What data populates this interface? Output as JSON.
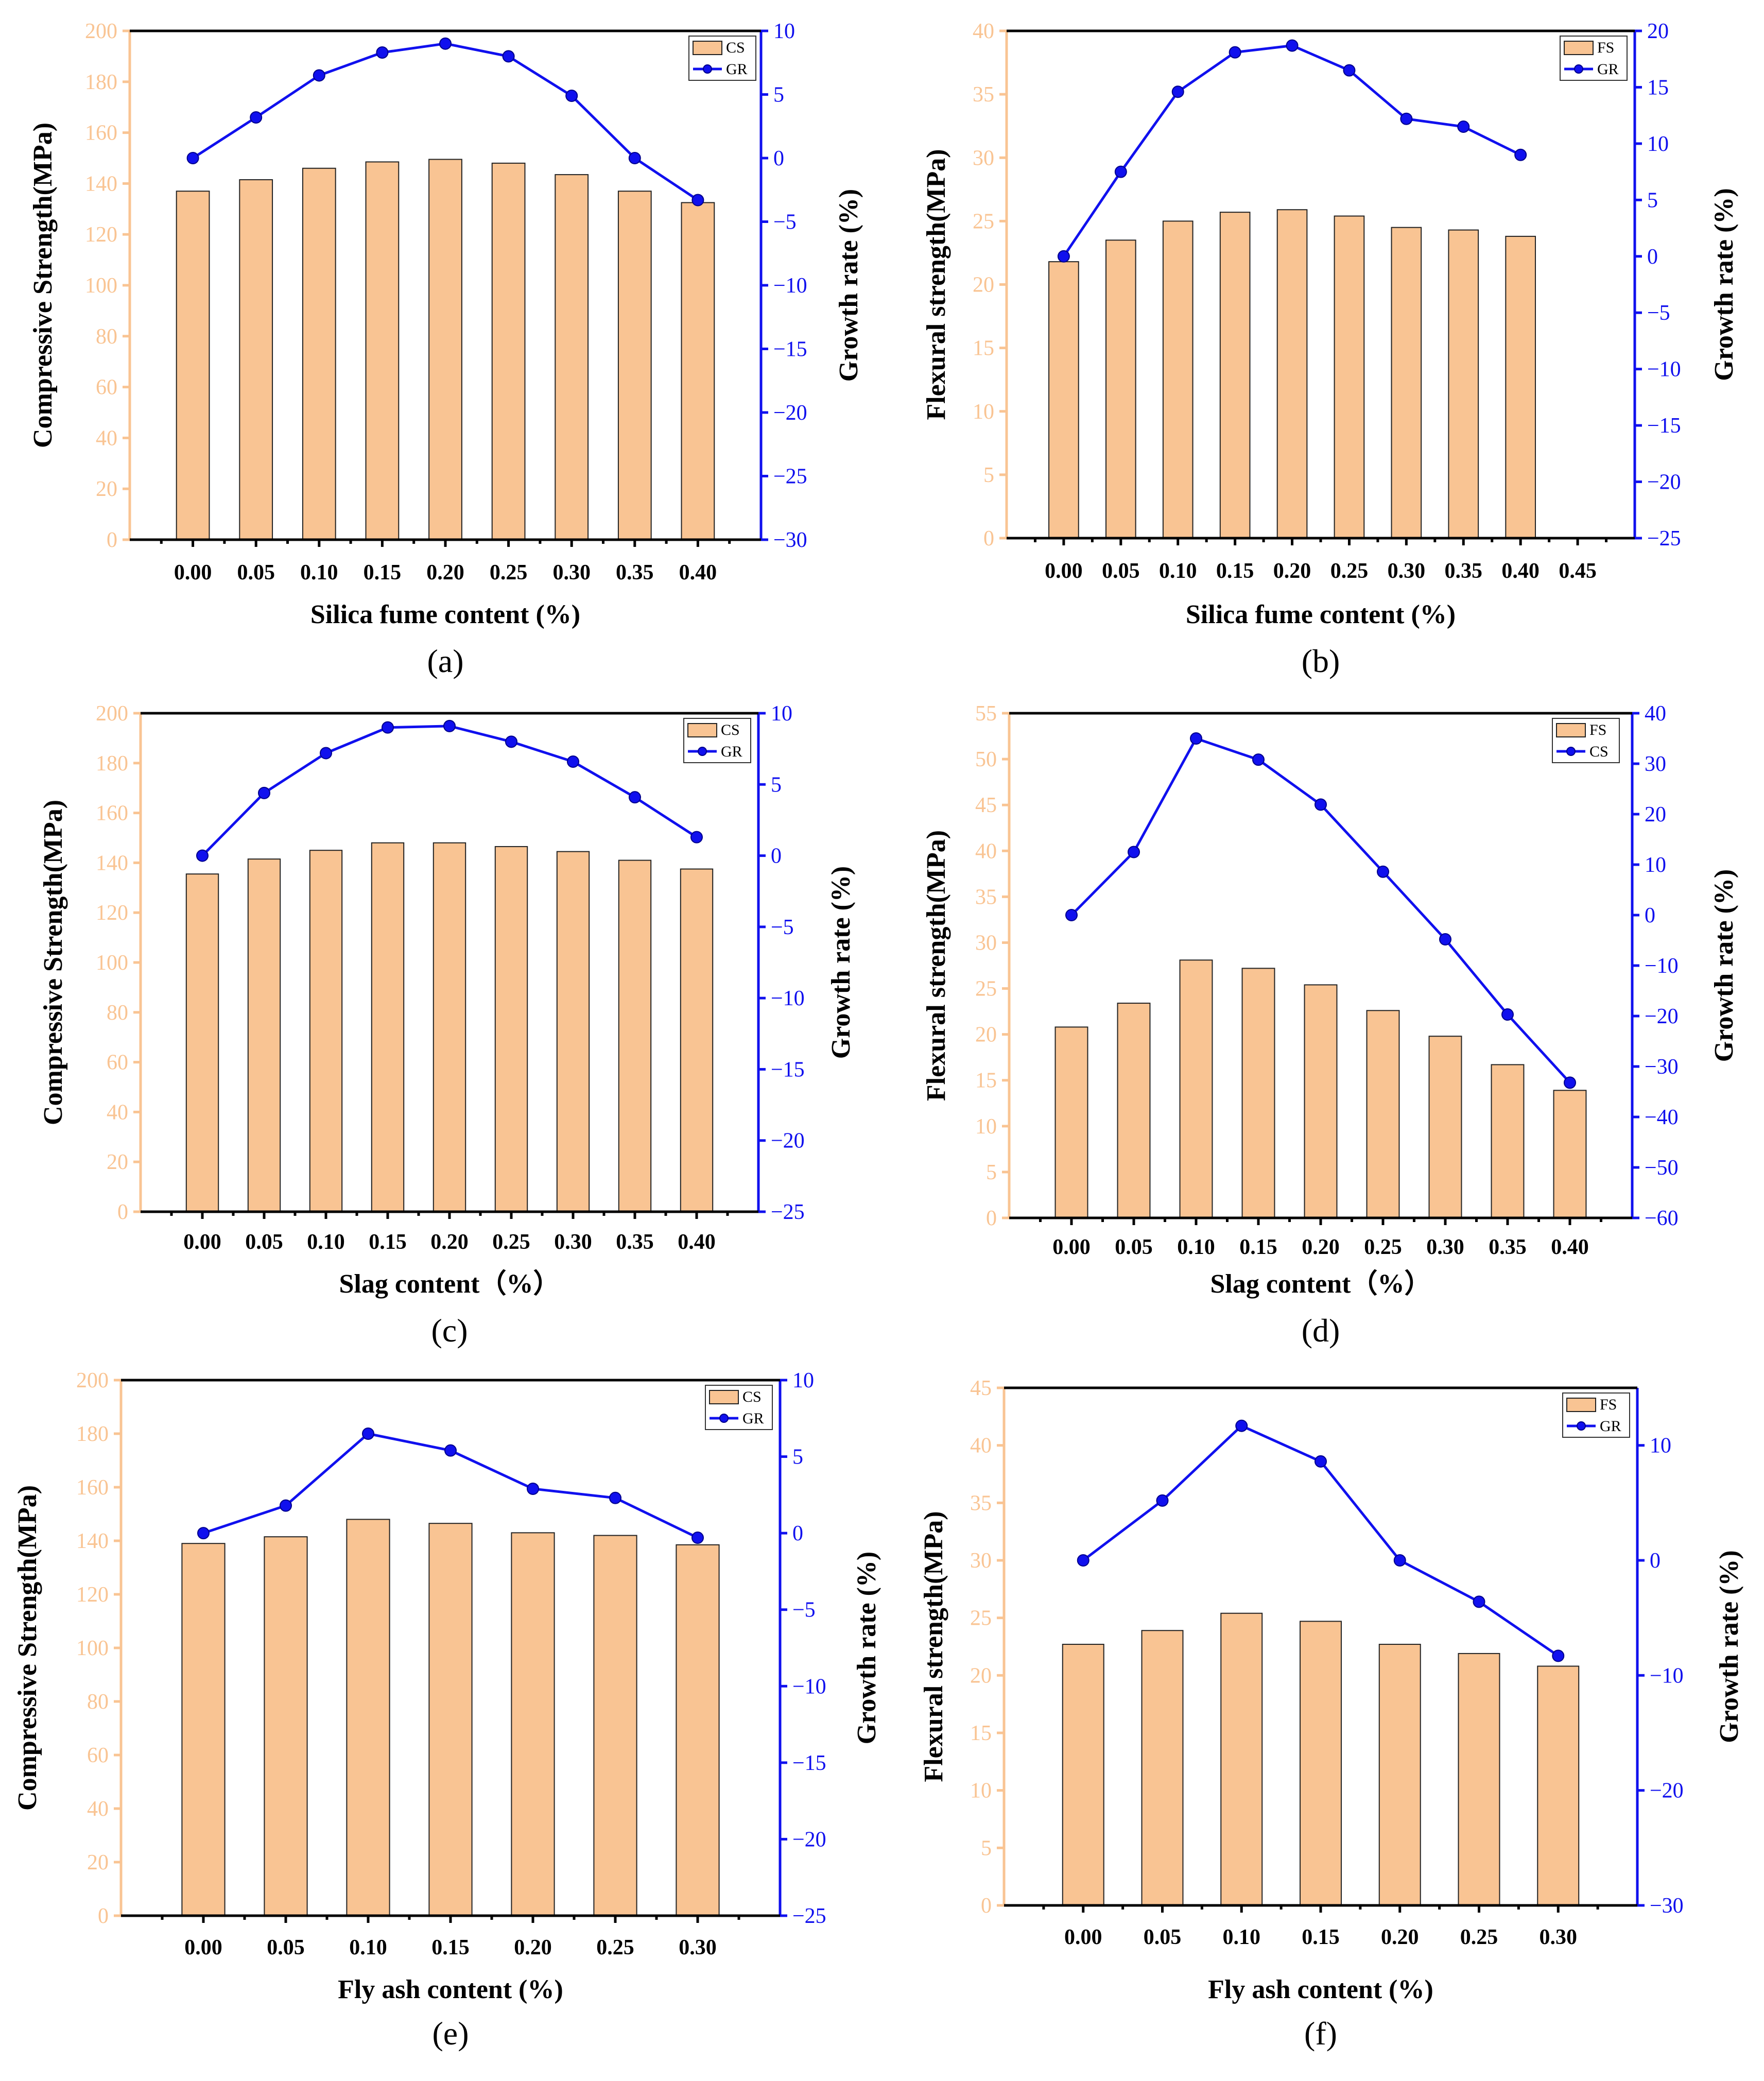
{
  "chart_data": [
    {
      "type": "bar",
      "panel": "(a)",
      "categories": [
        "0.00",
        "0.05",
        "0.10",
        "0.15",
        "0.20",
        "0.25",
        "0.30",
        "0.35",
        "0.40"
      ],
      "series": [
        {
          "name": "CS",
          "axis": "left",
          "kind": "bar",
          "values": [
            137,
            141.5,
            146,
            148.5,
            149.5,
            148,
            143.5,
            137,
            132.5
          ]
        },
        {
          "name": "GR",
          "axis": "right",
          "kind": "line",
          "values": [
            0,
            3.2,
            6.5,
            8.3,
            9,
            8,
            4.9,
            0,
            -3.3
          ]
        }
      ],
      "xlabel": "Silica fume content (%)",
      "ylabel": "Compressive Strength(MPa)",
      "y2label": "Growth rate (%)",
      "ylim": [
        0,
        200
      ],
      "yticks": [
        0,
        20,
        40,
        60,
        80,
        100,
        120,
        140,
        160,
        180,
        200
      ],
      "y2lim": [
        -30,
        10
      ],
      "y2ticks": [
        -30,
        -25,
        -20,
        -15,
        -10,
        -5,
        0,
        5,
        10
      ],
      "legend": [
        "CS",
        "GR"
      ]
    },
    {
      "type": "bar",
      "panel": "(b)",
      "categories": [
        "0.00",
        "0.05",
        "0.10",
        "0.15",
        "0.20",
        "0.25",
        "0.30",
        "0.35",
        "0.40"
      ],
      "extra_ticks": [
        "0.45"
      ],
      "series": [
        {
          "name": "FS",
          "axis": "left",
          "kind": "bar",
          "values": [
            21.8,
            23.5,
            25,
            25.7,
            25.9,
            25.4,
            24.5,
            24.3,
            23.8
          ]
        },
        {
          "name": "GR",
          "axis": "right",
          "kind": "line",
          "values": [
            0,
            7.5,
            14.6,
            18.1,
            18.7,
            16.5,
            12.2,
            11.5,
            9
          ]
        }
      ],
      "xlabel": "Silica fume content (%)",
      "ylabel": "Flexural strength(MPa)",
      "y2label": "Growth rate (%)",
      "ylim": [
        0,
        40
      ],
      "yticks": [
        0,
        5,
        10,
        15,
        20,
        25,
        30,
        35,
        40
      ],
      "y2lim": [
        -25,
        20
      ],
      "y2ticks": [
        -25,
        -20,
        -15,
        -10,
        -5,
        0,
        5,
        10,
        15,
        20
      ],
      "legend": [
        "FS",
        "GR"
      ]
    },
    {
      "type": "bar",
      "panel": "(c)",
      "categories": [
        "0.00",
        "0.05",
        "0.10",
        "0.15",
        "0.20",
        "0.25",
        "0.30",
        "0.35",
        "0.40"
      ],
      "series": [
        {
          "name": "CS",
          "axis": "left",
          "kind": "bar",
          "values": [
            135.5,
            141.5,
            145,
            148,
            148,
            146.5,
            144.5,
            141,
            137.5
          ]
        },
        {
          "name": "GR",
          "axis": "right",
          "kind": "line",
          "values": [
            0,
            4.4,
            7.2,
            9,
            9.1,
            8,
            6.6,
            4.1,
            1.3
          ]
        }
      ],
      "xlabel": "Slag content（%）",
      "ylabel": "Compressive Strength(MPa)",
      "y2label": "Growth rate (%)",
      "ylim": [
        0,
        200
      ],
      "yticks": [
        0,
        20,
        40,
        60,
        80,
        100,
        120,
        140,
        160,
        180,
        200
      ],
      "y2lim": [
        -25,
        10
      ],
      "y2ticks": [
        -25,
        -20,
        -15,
        -10,
        -5,
        0,
        5,
        10
      ],
      "legend": [
        "CS",
        "GR"
      ]
    },
    {
      "type": "bar",
      "panel": "(d)",
      "categories": [
        "0.00",
        "0.05",
        "0.10",
        "0.15",
        "0.20",
        "0.25",
        "0.30",
        "0.35",
        "0.40"
      ],
      "series": [
        {
          "name": "FS",
          "axis": "left",
          "kind": "bar",
          "values": [
            20.8,
            23.4,
            28.1,
            27.2,
            25.4,
            22.6,
            19.8,
            16.7,
            13.9
          ]
        },
        {
          "name": "CS",
          "axis": "right",
          "kind": "line",
          "values": [
            0,
            12.5,
            35,
            30.8,
            21.9,
            8.6,
            -4.8,
            -19.7,
            -33.2
          ]
        }
      ],
      "xlabel": "Slag content（%）",
      "ylabel": "Flexural strength(MPa)",
      "y2label": "Growth rate (%)",
      "ylim": [
        0,
        55
      ],
      "yticks": [
        0,
        5,
        10,
        15,
        20,
        25,
        30,
        35,
        40,
        45,
        50,
        55
      ],
      "y2lim": [
        -60,
        40
      ],
      "y2ticks": [
        -60,
        -50,
        -40,
        -30,
        -20,
        -10,
        0,
        10,
        20,
        30,
        40
      ],
      "legend": [
        "FS",
        "CS"
      ]
    },
    {
      "type": "bar",
      "panel": "(e)",
      "categories": [
        "0.00",
        "0.05",
        "0.10",
        "0.15",
        "0.20",
        "0.25",
        "0.30"
      ],
      "series": [
        {
          "name": "CS",
          "axis": "left",
          "kind": "bar",
          "values": [
            139,
            141.5,
            148,
            146.5,
            143,
            142,
            138.5
          ]
        },
        {
          "name": "GR",
          "axis": "right",
          "kind": "line",
          "values": [
            0,
            1.8,
            6.5,
            5.4,
            2.9,
            2.3,
            -0.3
          ]
        }
      ],
      "xlabel": "Fly ash content (%)",
      "ylabel": "Compressive Strength(MPa)",
      "y2label": "Growth rate (%)",
      "ylim": [
        0,
        200
      ],
      "yticks": [
        0,
        20,
        40,
        60,
        80,
        100,
        120,
        140,
        160,
        180,
        200
      ],
      "y2lim": [
        -25,
        10
      ],
      "y2ticks": [
        -25,
        -20,
        -15,
        -10,
        -5,
        0,
        5,
        10
      ],
      "legend": [
        "CS",
        "GR"
      ]
    },
    {
      "type": "bar",
      "panel": "(f)",
      "categories": [
        "0.00",
        "0.05",
        "0.10",
        "0.15",
        "0.20",
        "0.25",
        "0.30"
      ],
      "series": [
        {
          "name": "FS",
          "axis": "left",
          "kind": "bar",
          "values": [
            22.7,
            23.9,
            25.4,
            24.7,
            22.7,
            21.9,
            20.8
          ]
        },
        {
          "name": "GR",
          "axis": "right",
          "kind": "line",
          "values": [
            0,
            5.2,
            11.7,
            8.6,
            0,
            -3.6,
            -8.3
          ]
        }
      ],
      "xlabel": "Fly ash content (%)",
      "ylabel": "Flexural strength(MPa)",
      "y2label": "Growth rate (%)",
      "ylim": [
        0,
        45
      ],
      "yticks": [
        0,
        5,
        10,
        15,
        20,
        25,
        30,
        35,
        40,
        45
      ],
      "y2lim": [
        -30,
        15
      ],
      "y2ticks": [
        -30,
        -20,
        -10,
        0,
        10
      ],
      "legend": [
        "FS",
        "GR"
      ]
    }
  ]
}
